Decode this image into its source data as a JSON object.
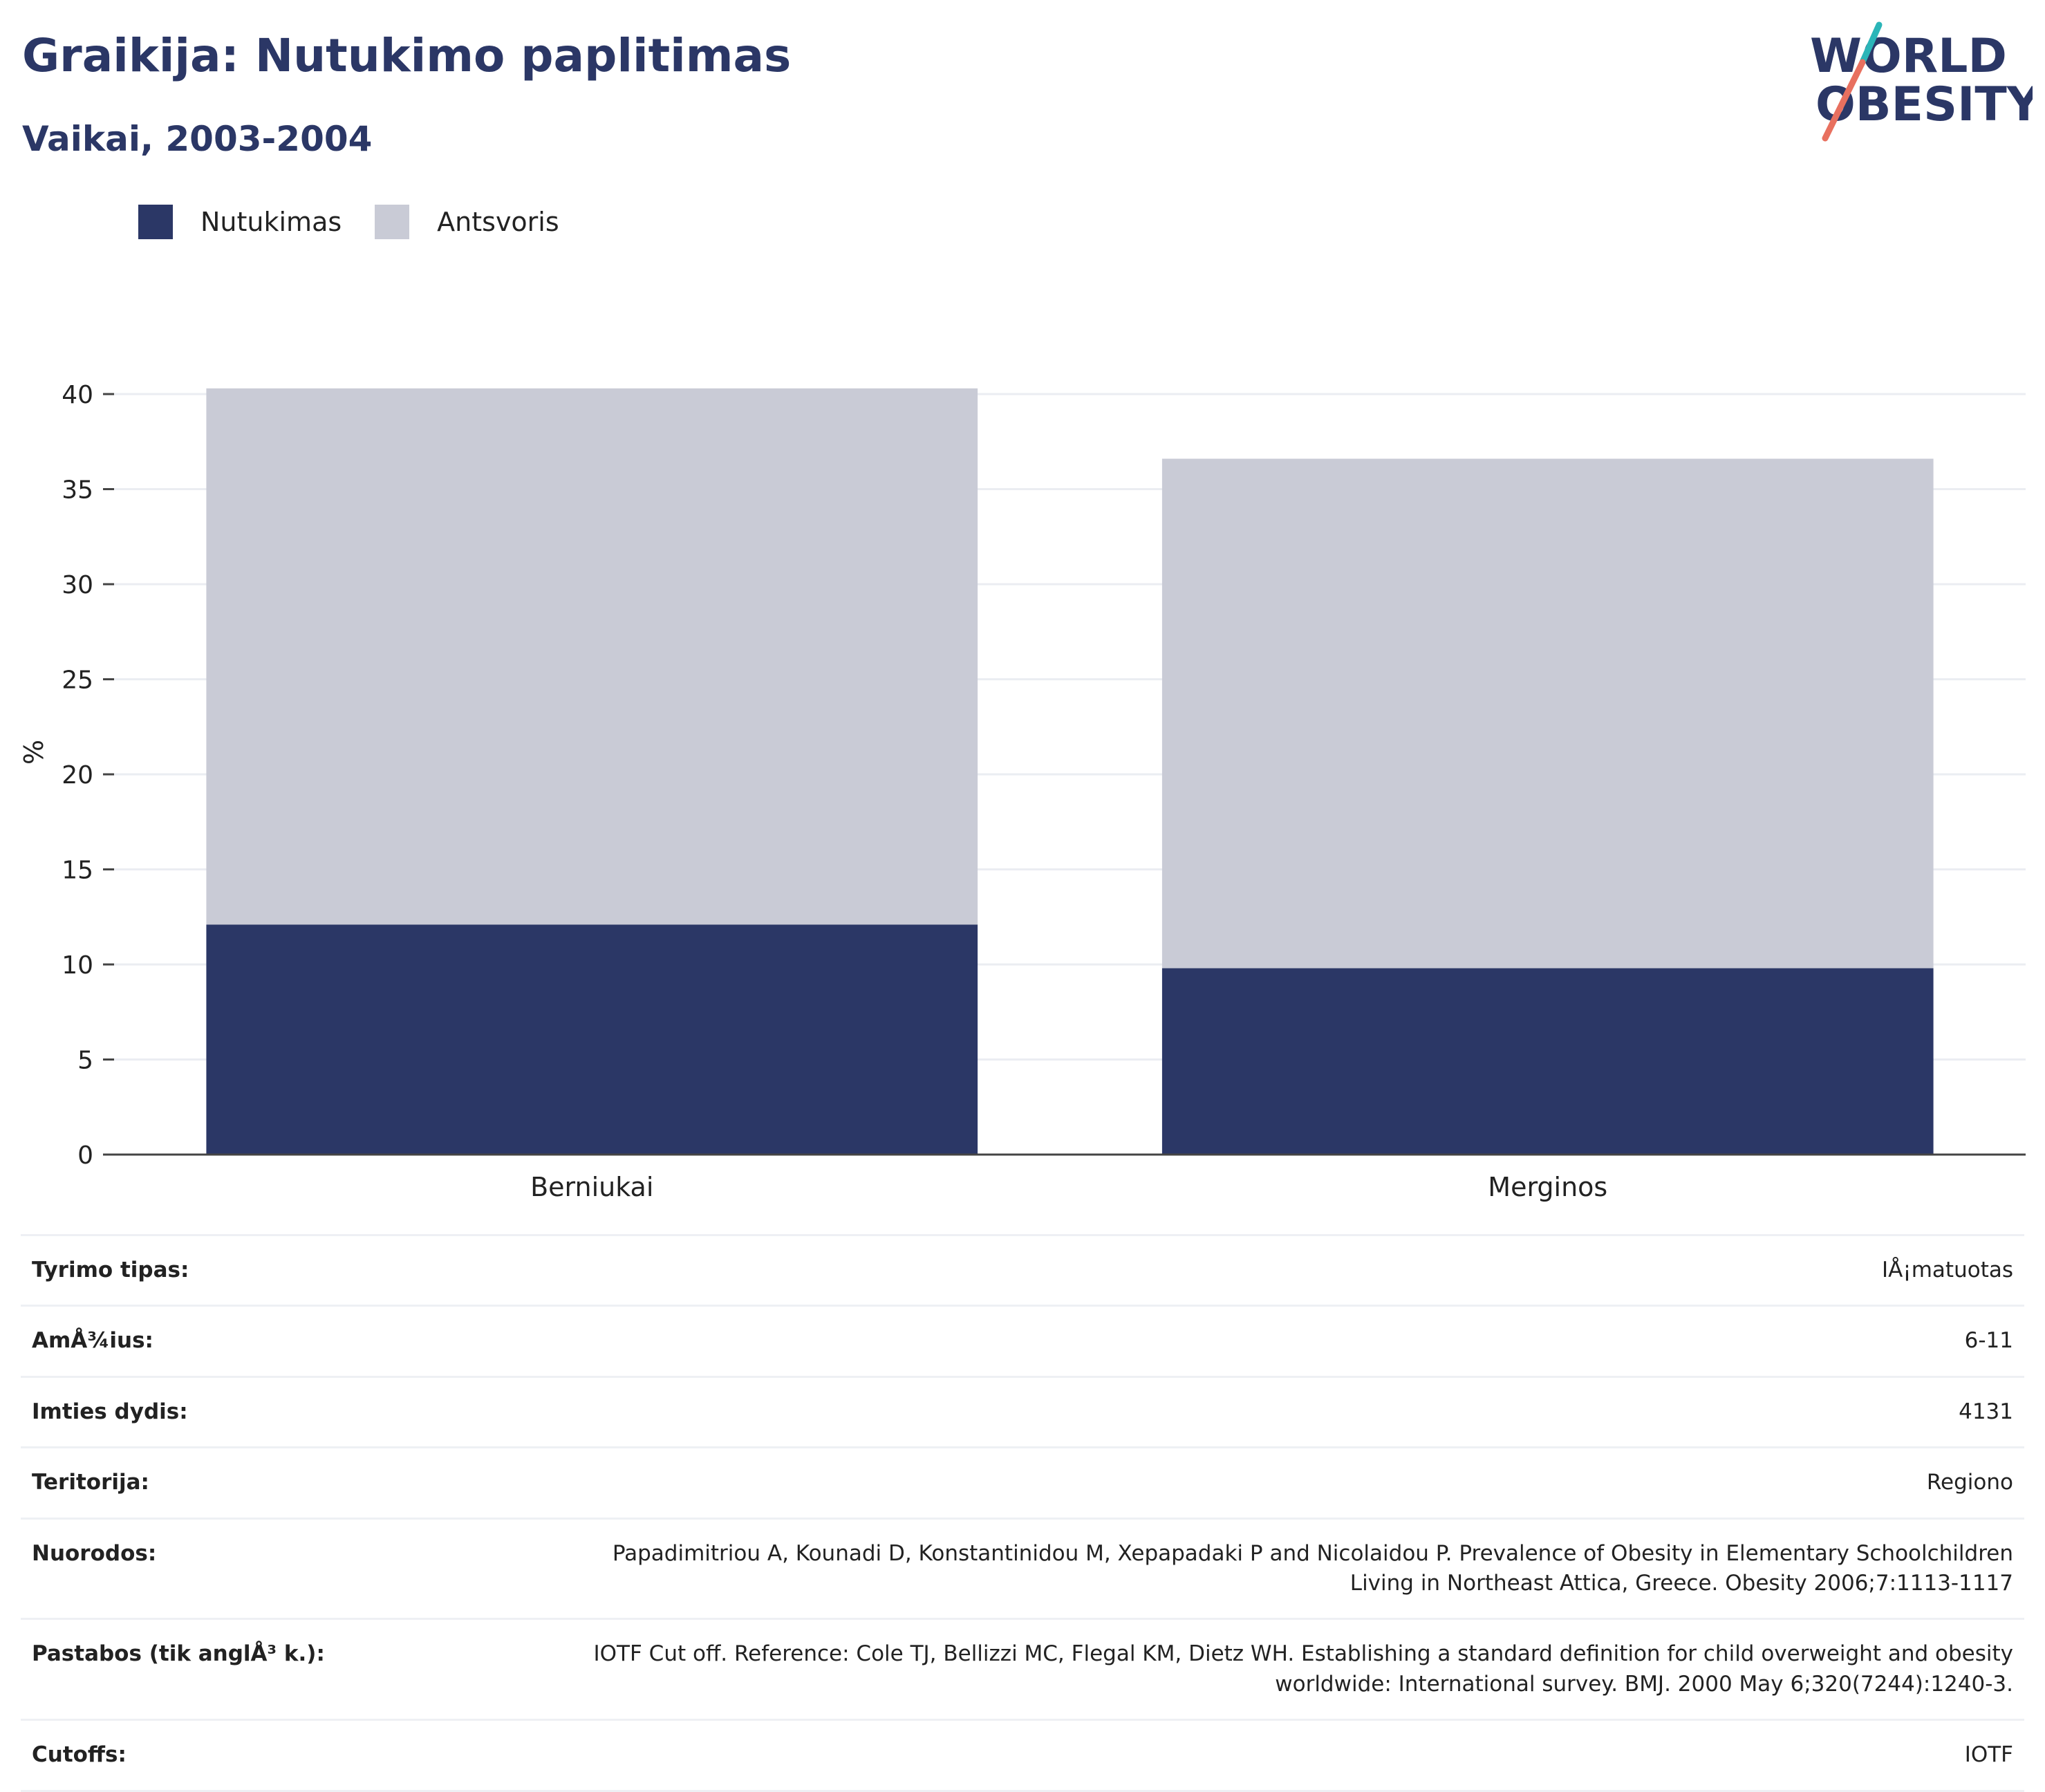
{
  "title": "Graikija: Nutukimo paplitimas",
  "subtitle": "Vaikai, 2003-2004",
  "logo": {
    "line1": "WORLD",
    "line2": "OBESITY"
  },
  "colors": {
    "obesity": "#2b3766",
    "overweight": "#c9cbd6",
    "title": "#2b3766",
    "logo_teal": "#2bb5b8",
    "logo_red": "#e8705f"
  },
  "legend": [
    {
      "label": "Nutukimas",
      "color": "#2b3766"
    },
    {
      "label": "Antsvoris",
      "color": "#c9cbd6"
    }
  ],
  "chart_data": {
    "type": "bar",
    "stacked": true,
    "categories": [
      "Berniukai",
      "Merginos"
    ],
    "series": [
      {
        "name": "Nutukimas",
        "values": [
          12.1,
          9.8
        ]
      },
      {
        "name": "Antsvoris",
        "values": [
          28.2,
          26.8
        ]
      }
    ],
    "ylabel": "%",
    "ylim": [
      0,
      40
    ],
    "yticks": [
      0,
      5,
      10,
      15,
      20,
      25,
      30,
      35,
      40
    ],
    "grid": true,
    "legend_position": "top-left"
  },
  "info_rows": [
    {
      "key": "Tyrimo tipas:",
      "value": "IÅ¡matuotas"
    },
    {
      "key": "AmÅ¾ius:",
      "value": "6-11"
    },
    {
      "key": "Imties dydis:",
      "value": "4131"
    },
    {
      "key": "Teritorija:",
      "value": "Regiono"
    },
    {
      "key": "Nuorodos:",
      "value": "Papadimitriou A, Kounadi D, Konstantinidou M, Xepapadaki P and Nicolaidou P. Prevalence of Obesity in Elementary Schoolchildren Living in Northeast Attica, Greece. Obesity 2006;7:1113-1117"
    },
    {
      "key": "Pastabos (tik anglÅ³ k.):",
      "value": "IOTF Cut off. Reference: Cole TJ, Bellizzi MC, Flegal KM, Dietz WH. Establishing a standard definition for child overweight and obesity worldwide: International survey. BMJ. 2000 May 6;320(7244):1240-3."
    },
    {
      "key": "Cutoffs:",
      "value": "IOTF"
    }
  ]
}
